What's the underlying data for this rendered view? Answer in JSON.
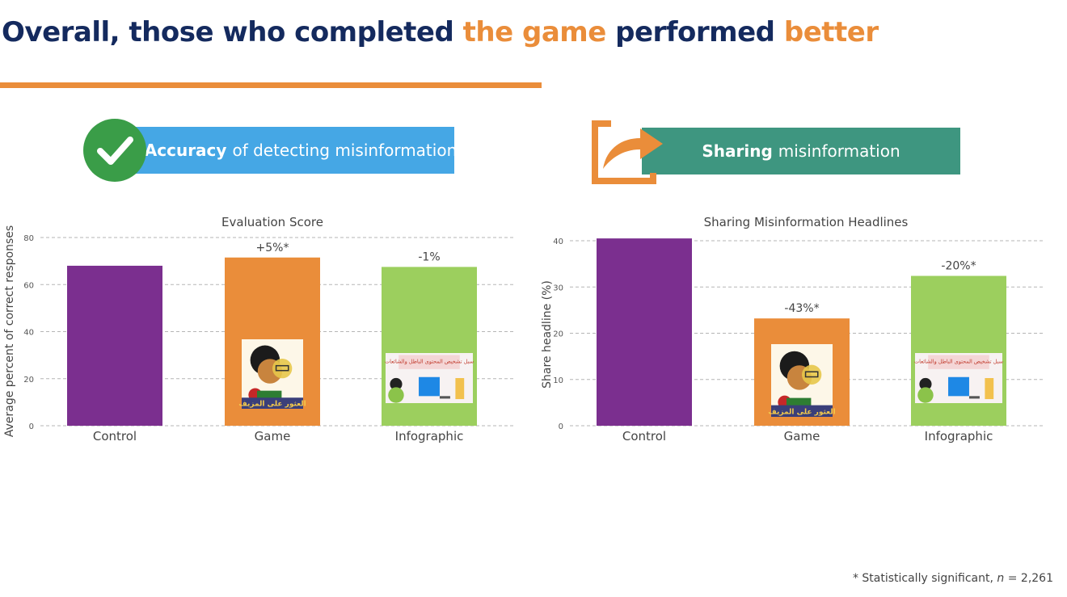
{
  "title": {
    "part1": "Overall, those who completed ",
    "part2": "the game",
    "part3": " performed ",
    "part4": "better"
  },
  "colors": {
    "navy": "#142a5e",
    "orange": "#ea8d3a",
    "purple": "#7b2f8f",
    "bar_orange": "#ea8d3a",
    "green": "#9ccf5e",
    "blue_banner": "#45a7e5",
    "teal_banner": "#3e9680",
    "check_green": "#3a9d48"
  },
  "banners": {
    "accuracy": {
      "bold": "Accuracy",
      "rest": "of detecting misinformation",
      "icon": "checkmark-icon"
    },
    "sharing": {
      "bold": "Sharing",
      "rest": "misinformation",
      "icon": "share-arrow-icon"
    }
  },
  "thumbnails": {
    "game_caption": "العثور على المزيف",
    "infographic_title": "سبل تشخيص المحتوى الباطل والشائعات"
  },
  "footnote": {
    "prefix": "* Statistically significant, ",
    "n_label": "n",
    "n_value": " = 2,261"
  },
  "chart_data": [
    {
      "type": "bar",
      "title": "Evaluation Score",
      "xlabel": "",
      "ylabel": "Average percent of correct responses",
      "categories": [
        "Control",
        "Game",
        "Infographic"
      ],
      "values": [
        68,
        71.5,
        67.5
      ],
      "annotations": [
        "",
        "+5%*",
        "-1%"
      ],
      "ylim": [
        0,
        80
      ],
      "yticks": [
        0,
        20,
        40,
        60,
        80
      ],
      "grid": true,
      "legend": "none"
    },
    {
      "type": "bar",
      "title": "Sharing Misinformation Headlines",
      "xlabel": "",
      "ylabel": "Share headline (%)",
      "categories": [
        "Control",
        "Game",
        "Infographic"
      ],
      "values": [
        40.5,
        23.2,
        32.4
      ],
      "annotations": [
        "",
        "-43%*",
        "-20%*"
      ],
      "ylim": [
        0,
        40
      ],
      "yticks": [
        0,
        10,
        20,
        30,
        40
      ],
      "grid": true,
      "legend": "none"
    }
  ]
}
